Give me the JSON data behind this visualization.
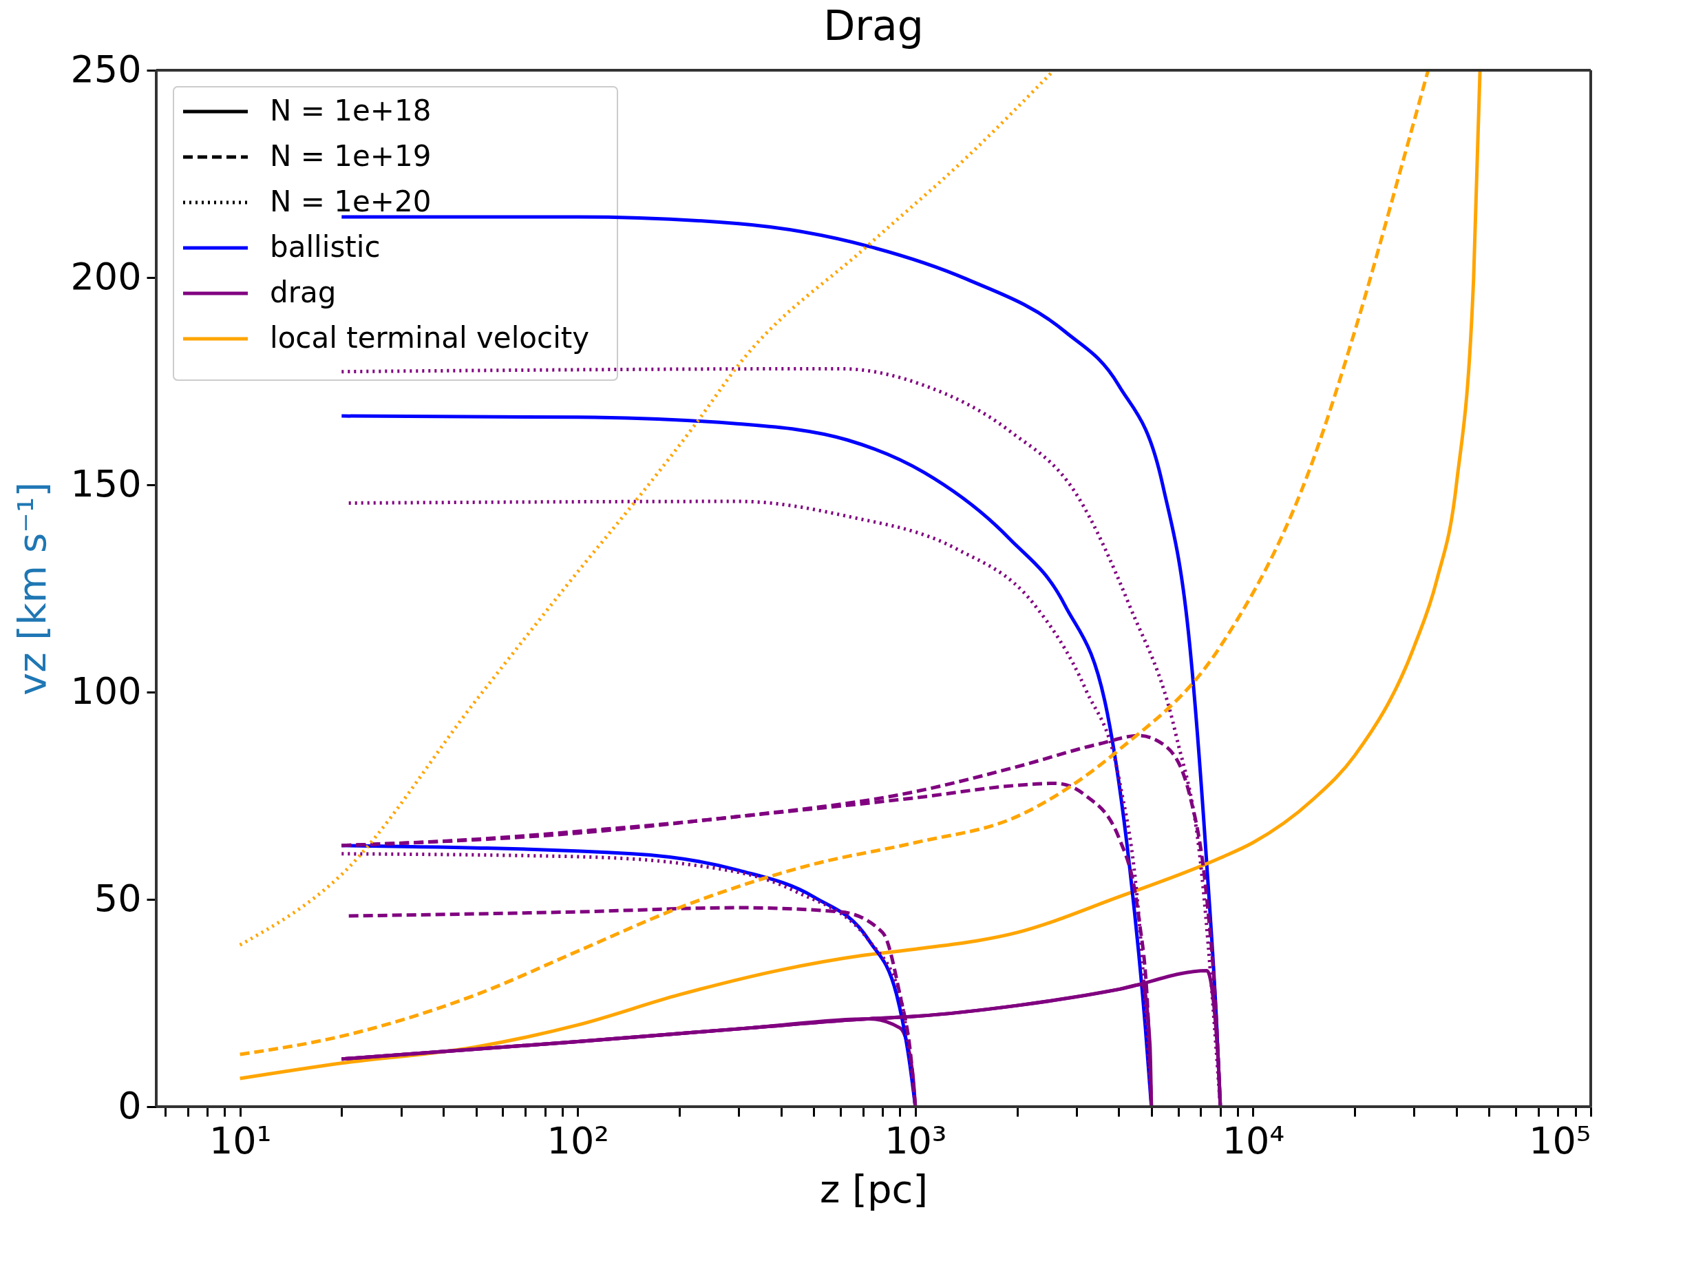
{
  "chart_data": {
    "type": "line",
    "title": "Drag",
    "xlabel": "z [pc]",
    "ylabel": "vz [km s⁻¹]",
    "log": "x",
    "xlim": [
      5.65,
      100000
    ],
    "ylim": [
      0,
      250
    ],
    "xticks": [
      {
        "value": 6,
        "label": null
      },
      {
        "value": 7,
        "label": null
      },
      {
        "value": 8,
        "label": null
      },
      {
        "value": 9,
        "label": null
      },
      {
        "value": 10,
        "label": "10¹"
      },
      {
        "value": 20,
        "label": null
      },
      {
        "value": 30,
        "label": null
      },
      {
        "value": 40,
        "label": null
      },
      {
        "value": 50,
        "label": null
      },
      {
        "value": 60,
        "label": null
      },
      {
        "value": 70,
        "label": null
      },
      {
        "value": 80,
        "label": null
      },
      {
        "value": 90,
        "label": null
      },
      {
        "value": 100,
        "label": "10²"
      },
      {
        "value": 200,
        "label": null
      },
      {
        "value": 300,
        "label": null
      },
      {
        "value": 400,
        "label": null
      },
      {
        "value": 500,
        "label": null
      },
      {
        "value": 600,
        "label": null
      },
      {
        "value": 700,
        "label": null
      },
      {
        "value": 800,
        "label": null
      },
      {
        "value": 900,
        "label": null
      },
      {
        "value": 1000,
        "label": "10³"
      },
      {
        "value": 2000,
        "label": null
      },
      {
        "value": 3000,
        "label": null
      },
      {
        "value": 4000,
        "label": null
      },
      {
        "value": 5000,
        "label": null
      },
      {
        "value": 6000,
        "label": null
      },
      {
        "value": 7000,
        "label": null
      },
      {
        "value": 8000,
        "label": null
      },
      {
        "value": 9000,
        "label": null
      },
      {
        "value": 10000,
        "label": "10⁴"
      },
      {
        "value": 20000,
        "label": null
      },
      {
        "value": 30000,
        "label": null
      },
      {
        "value": 40000,
        "label": null
      },
      {
        "value": 50000,
        "label": null
      },
      {
        "value": 60000,
        "label": null
      },
      {
        "value": 70000,
        "label": null
      },
      {
        "value": 80000,
        "label": null
      },
      {
        "value": 90000,
        "label": null
      },
      {
        "value": 100000,
        "label": "10⁵"
      }
    ],
    "yticks": [
      0,
      50,
      100,
      150,
      200,
      250
    ],
    "grid": false,
    "legend": "top left",
    "series": [
      {
        "name": "N = 1e+18",
        "color": "#000000",
        "line_style": "solid"
      },
      {
        "name": "N = 1e+19",
        "color": "#000000",
        "line_style": "dashed"
      },
      {
        "name": "N = 1e+20",
        "color": "#000000",
        "line_style": "dotted"
      },
      {
        "name": "ballistic",
        "color": "#0000ff",
        "line_style": "solid",
        "x": [
          20,
          100,
          300,
          730,
          1420,
          2770,
          4000,
          5400,
          6500,
          7300,
          7800,
          8000
        ],
        "values": [
          214.6,
          214.6,
          213,
          207.5,
          199.6,
          187,
          174,
          150,
          111,
          58,
          20,
          0
        ]
      },
      {
        "name": "drag",
        "color": "#800080",
        "line_style": "solid",
        "x": [
          20,
          100,
          325,
          730,
          900,
          980,
          1000
        ],
        "values": [
          11.5,
          15.7,
          19,
          21.2,
          19,
          8.6,
          0
        ]
      },
      {
        "name": "local terminal velocity",
        "color": "#ffa500",
        "line_style": "solid",
        "x": [
          10,
          20,
          50,
          100,
          200,
          400,
          700,
          1000,
          2000,
          4000,
          8000,
          10000,
          15000,
          20000,
          30000,
          35000,
          40000,
          45000,
          47000
        ],
        "values": [
          6.8,
          10.5,
          14.4,
          19.7,
          27,
          33,
          36.5,
          38,
          42,
          50.6,
          60,
          63.7,
          74,
          84.7,
          111,
          127,
          150,
          200,
          250
        ]
      },
      {
        "color": "#0000ff",
        "line_style": "solid",
        "x": [
          20,
          100,
          300,
          630,
          1060,
          1900,
          2770,
          3700,
          4300,
          4800,
          5000
        ],
        "values": [
          166.6,
          166.3,
          164.7,
          160.8,
          153,
          137,
          121,
          95,
          58.5,
          19,
          0
        ]
      },
      {
        "color": "#0000ff",
        "line_style": "solid",
        "x": [
          20,
          145,
          300,
          500,
          730,
          880,
          960,
          1000
        ],
        "values": [
          63,
          61,
          57,
          50.6,
          40,
          27,
          11,
          0
        ]
      },
      {
        "color": "#800080",
        "line_style": "solid",
        "x": [
          20,
          100,
          325,
          730,
          1000,
          2000,
          4000,
          4700,
          4950,
          5000
        ],
        "values": [
          11.5,
          15.7,
          19,
          21.2,
          21.8,
          24.4,
          28.3,
          29.5,
          15,
          0
        ]
      },
      {
        "color": "#800080",
        "line_style": "solid",
        "x": [
          20,
          100,
          325,
          730,
          1000,
          2000,
          4000,
          7300,
          7900,
          8000
        ],
        "values": [
          11.5,
          15.7,
          19,
          21.2,
          21.8,
          24.4,
          28.3,
          32.8,
          10,
          0
        ]
      },
      {
        "color": "#800080",
        "line_style": "dotted",
        "x": [
          20,
          600,
          1060,
          1900,
          3000,
          4300,
          5900,
          7000,
          8000
        ],
        "values": [
          177.3,
          178,
          174,
          163,
          147.7,
          121,
          90,
          58.5,
          0
        ]
      },
      {
        "color": "#800080",
        "line_style": "dotted",
        "x": [
          21,
          300,
          630,
          1320,
          2230,
          3200,
          4000,
          4600,
          5000
        ],
        "values": [
          145.6,
          146,
          142.4,
          134.6,
          121.5,
          100.5,
          79.5,
          45,
          0
        ]
      },
      {
        "color": "#800080",
        "line_style": "dotted",
        "x": [
          20,
          100,
          210,
          440,
          730,
          900,
          1000
        ],
        "values": [
          61,
          60.3,
          58.5,
          52,
          40,
          27,
          0
        ]
      },
      {
        "color": "#800080",
        "line_style": "dashed",
        "x": [
          20,
          50,
          100,
          300,
          1000,
          2000,
          3500,
          4600,
          5500,
          6500,
          7300,
          7800,
          8000
        ],
        "values": [
          63,
          64.5,
          66.4,
          70,
          76,
          82,
          87.5,
          89.5,
          87,
          75,
          50,
          20,
          0
        ]
      },
      {
        "color": "#800080",
        "line_style": "dashed",
        "x": [
          20,
          100,
          300,
          1000,
          2000,
          2600,
          3200,
          4000,
          4600,
          4900,
          5000
        ],
        "values": [
          63,
          66,
          70,
          74.5,
          77.5,
          78,
          75,
          65,
          45,
          20,
          0
        ]
      },
      {
        "color": "#800080",
        "line_style": "dashed",
        "x": [
          21,
          100,
          300,
          600,
          800,
          900,
          970,
          1000
        ],
        "values": [
          46,
          47,
          48,
          47,
          42,
          27,
          12,
          0
        ]
      },
      {
        "color": "#ffa500",
        "line_style": "dashed",
        "x": [
          10,
          20,
          50,
          100,
          200,
          500,
          1000,
          2000,
          4000,
          8000,
          15000,
          20000,
          28000,
          33000
        ],
        "values": [
          12.6,
          17,
          27,
          37.5,
          48,
          58.5,
          63.7,
          70,
          86,
          111,
          155.6,
          187,
          229,
          250
        ]
      },
      {
        "color": "#ffa500",
        "line_style": "dotted",
        "x": [
          10,
          20,
          50,
          100,
          155,
          225,
          300,
          730,
          1420,
          2570
        ],
        "values": [
          39,
          56,
          98,
          129,
          148,
          165,
          179,
          208,
          229,
          250
        ]
      }
    ]
  }
}
